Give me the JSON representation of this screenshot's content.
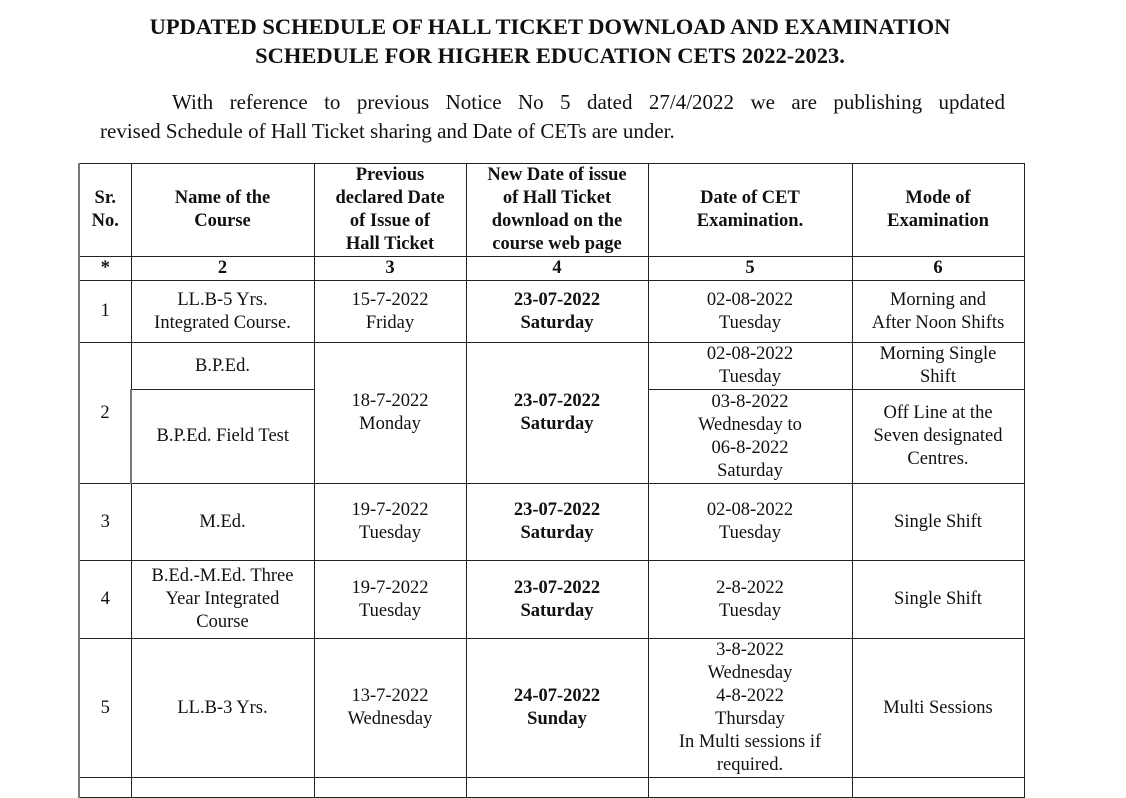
{
  "title": [
    "UPDATED SCHEDULE OF HALL TICKET DOWNLOAD AND EXAMINATION",
    "SCHEDULE FOR HIGHER EDUCATION CETS 2022-2023."
  ],
  "intro": [
    "With reference to previous Notice No 5 dated 27/4/2022 we are publishing updated",
    "revised Schedule of Hall Ticket sharing and Date of CETs are under."
  ],
  "table": {
    "headers": [
      [
        "Sr.",
        "No."
      ],
      [
        "Name of the",
        "Course"
      ],
      [
        "Previous",
        "declared Date",
        "of  Issue of",
        "Hall Ticket"
      ],
      [
        "New Date of issue",
        "of  Hall Ticket",
        "download on the",
        "course web page"
      ],
      [
        "Date of CET",
        "Examination."
      ],
      [
        "Mode of",
        "Examination"
      ]
    ],
    "numbers": [
      "*",
      "2",
      "3",
      "4",
      "5",
      "6"
    ],
    "rows": [
      {
        "sr": "1",
        "course": [
          "LL.B-5 Yrs.",
          "Integrated Course."
        ],
        "prev": [
          "15-7-2022",
          "Friday"
        ],
        "new": [
          "23-07-2022",
          "Saturday"
        ],
        "cet": [
          "02-08-2022",
          "Tuesday"
        ],
        "mode": [
          "Morning and",
          "After Noon Shifts"
        ]
      },
      {
        "sr": "2",
        "prev": [
          "18-7-2022",
          "Monday"
        ],
        "new": [
          "23-07-2022",
          "Saturday"
        ],
        "sub": [
          {
            "course": [
              "B.P.Ed."
            ],
            "cet": [
              "02-08-2022",
              "Tuesday"
            ],
            "mode": [
              "Morning Single",
              "Shift"
            ]
          },
          {
            "course": [
              "B.P.Ed. Field Test"
            ],
            "cet": [
              "03-8-2022",
              "Wednesday to",
              "06-8-2022",
              "Saturday"
            ],
            "mode": [
              "Off Line at the",
              "Seven designated",
              "Centres."
            ]
          }
        ]
      },
      {
        "sr": "3",
        "course": [
          "M.Ed."
        ],
        "prev": [
          "19-7-2022",
          "Tuesday"
        ],
        "new": [
          "23-07-2022",
          "Saturday"
        ],
        "cet": [
          "02-08-2022",
          "Tuesday"
        ],
        "mode": [
          "Single Shift"
        ]
      },
      {
        "sr": "4",
        "course": [
          "B.Ed.-M.Ed. Three",
          "Year Integrated",
          "Course"
        ],
        "prev": [
          "19-7-2022",
          "Tuesday"
        ],
        "new": [
          "23-07-2022",
          "Saturday"
        ],
        "cet": [
          "2-8-2022",
          "Tuesday"
        ],
        "mode": [
          "Single Shift"
        ]
      },
      {
        "sr": "5",
        "course": [
          "LL.B-3 Yrs."
        ],
        "prev": [
          "13-7-2022",
          "Wednesday"
        ],
        "new": [
          "24-07-2022",
          "Sunday"
        ],
        "cet": [
          "3-8-2022",
          "Wednesday",
          "4-8-2022",
          "Thursday",
          "In Multi sessions if",
          "required."
        ],
        "mode": [
          "Multi Sessions"
        ]
      }
    ]
  }
}
